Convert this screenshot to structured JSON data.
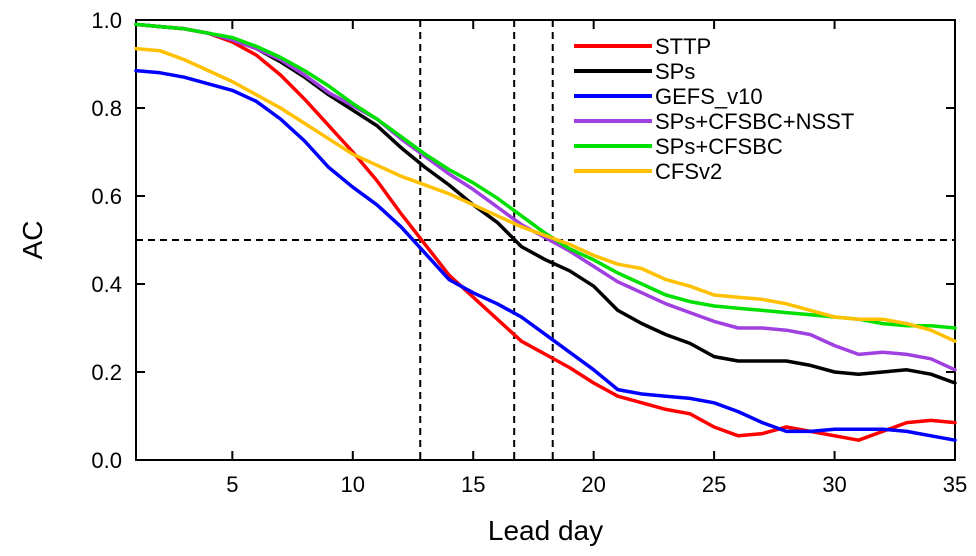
{
  "chart_data": {
    "type": "line",
    "xlabel": "Lead day",
    "ylabel": "AC",
    "xlim": [
      1,
      35
    ],
    "ylim": [
      0.0,
      1.0
    ],
    "xticks": [
      5,
      10,
      15,
      20,
      25,
      30,
      35
    ],
    "yticks": [
      0.0,
      0.2,
      0.4,
      0.6,
      0.8,
      1.0
    ],
    "ytick_labels": [
      "0.0",
      "0.2",
      "0.4",
      "0.6",
      "0.8",
      "1.0"
    ],
    "grid": false,
    "legend_position": "top-right",
    "x": [
      1,
      2,
      3,
      4,
      5,
      6,
      7,
      8,
      9,
      10,
      11,
      12,
      13,
      14,
      15,
      16,
      17,
      18,
      19,
      20,
      21,
      22,
      23,
      24,
      25,
      26,
      27,
      28,
      29,
      30,
      31,
      32,
      33,
      34,
      35
    ],
    "series": [
      {
        "name": "STTP",
        "color": "#ff0000",
        "values": [
          0.99,
          0.985,
          0.98,
          0.97,
          0.95,
          0.92,
          0.875,
          0.82,
          0.76,
          0.7,
          0.635,
          0.56,
          0.49,
          0.42,
          0.37,
          0.32,
          0.27,
          0.24,
          0.21,
          0.175,
          0.145,
          0.13,
          0.115,
          0.105,
          0.075,
          0.055,
          0.06,
          0.075,
          0.065,
          0.055,
          0.045,
          0.065,
          0.085,
          0.09,
          0.085
        ]
      },
      {
        "name": "SPs",
        "color": "#000000",
        "values": [
          0.99,
          0.985,
          0.98,
          0.97,
          0.955,
          0.935,
          0.905,
          0.87,
          0.83,
          0.795,
          0.76,
          0.71,
          0.665,
          0.625,
          0.58,
          0.54,
          0.485,
          0.455,
          0.43,
          0.395,
          0.34,
          0.31,
          0.285,
          0.265,
          0.235,
          0.225,
          0.225,
          0.225,
          0.215,
          0.2,
          0.195,
          0.2,
          0.205,
          0.195,
          0.175
        ]
      },
      {
        "name": "GEFS_v10",
        "color": "#0000ff",
        "values": [
          0.885,
          0.88,
          0.87,
          0.855,
          0.84,
          0.815,
          0.775,
          0.725,
          0.665,
          0.62,
          0.58,
          0.53,
          0.47,
          0.41,
          0.38,
          0.355,
          0.325,
          0.285,
          0.245,
          0.205,
          0.16,
          0.15,
          0.145,
          0.14,
          0.13,
          0.11,
          0.085,
          0.065,
          0.065,
          0.07,
          0.07,
          0.07,
          0.065,
          0.055,
          0.045
        ]
      },
      {
        "name": "SPs+CFSBC+NSST",
        "color": "#a040e0",
        "values": [
          0.99,
          0.985,
          0.98,
          0.97,
          0.955,
          0.935,
          0.91,
          0.875,
          0.835,
          0.805,
          0.775,
          0.73,
          0.69,
          0.65,
          0.615,
          0.575,
          0.535,
          0.505,
          0.475,
          0.44,
          0.405,
          0.38,
          0.355,
          0.335,
          0.315,
          0.3,
          0.3,
          0.295,
          0.285,
          0.26,
          0.24,
          0.245,
          0.24,
          0.23,
          0.205
        ]
      },
      {
        "name": "SPs+CFSBC",
        "color": "#00e000",
        "values": [
          0.99,
          0.985,
          0.98,
          0.97,
          0.96,
          0.94,
          0.915,
          0.885,
          0.85,
          0.81,
          0.775,
          0.735,
          0.695,
          0.66,
          0.63,
          0.595,
          0.555,
          0.515,
          0.48,
          0.455,
          0.425,
          0.4,
          0.375,
          0.36,
          0.35,
          0.345,
          0.34,
          0.335,
          0.33,
          0.325,
          0.32,
          0.31,
          0.305,
          0.305,
          0.3
        ]
      },
      {
        "name": "CFSv2",
        "color": "#ffc000",
        "values": [
          0.935,
          0.93,
          0.91,
          0.885,
          0.86,
          0.83,
          0.8,
          0.765,
          0.73,
          0.695,
          0.67,
          0.645,
          0.625,
          0.605,
          0.58,
          0.555,
          0.53,
          0.51,
          0.49,
          0.465,
          0.445,
          0.435,
          0.41,
          0.395,
          0.375,
          0.37,
          0.365,
          0.355,
          0.34,
          0.325,
          0.32,
          0.32,
          0.31,
          0.295,
          0.27
        ]
      }
    ],
    "reference_lines": {
      "horizontal_y": [
        0.5
      ],
      "vertical_x": [
        12.8,
        16.7,
        18.3
      ],
      "style": "dashed"
    }
  }
}
